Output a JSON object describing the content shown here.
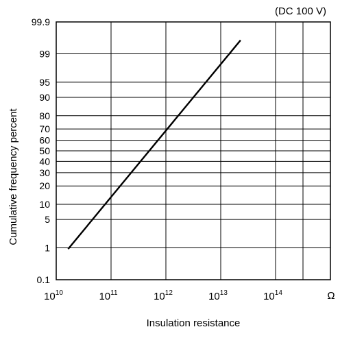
{
  "chart_data": {
    "type": "line",
    "annotation": "(DC 100 V)",
    "xlabel": "Insulation resistance",
    "ylabel": "Cumulative frequency percent",
    "x_unit_label": "Ω",
    "x_scale": "log",
    "y_scale": "normal-probability",
    "grid": true,
    "legend": "none",
    "xlim": [
      10000000000.0,
      1000000000000000.0
    ],
    "ylim": [
      0.1,
      99.9
    ],
    "x_ticks": [
      {
        "value": 10000000000.0,
        "base": "10",
        "exp": "10"
      },
      {
        "value": 100000000000.0,
        "base": "10",
        "exp": "11"
      },
      {
        "value": 1000000000000.0,
        "base": "10",
        "exp": "12"
      },
      {
        "value": 10000000000000.0,
        "base": "10",
        "exp": "13"
      },
      {
        "value": 100000000000000.0,
        "base": "10",
        "exp": "14"
      }
    ],
    "y_ticks": [
      {
        "value": 0.1,
        "label": "0.1"
      },
      {
        "value": 1,
        "label": "1"
      },
      {
        "value": 5,
        "label": "5"
      },
      {
        "value": 10,
        "label": "10"
      },
      {
        "value": 20,
        "label": "20"
      },
      {
        "value": 30,
        "label": "30"
      },
      {
        "value": 40,
        "label": "40"
      },
      {
        "value": 50,
        "label": "50"
      },
      {
        "value": 60,
        "label": "60"
      },
      {
        "value": 70,
        "label": "70"
      },
      {
        "value": 80,
        "label": "80"
      },
      {
        "value": 90,
        "label": "90"
      },
      {
        "value": 95,
        "label": "95"
      },
      {
        "value": 99,
        "label": "99"
      },
      {
        "value": 99.9,
        "label": "99.9"
      }
    ],
    "series": [
      {
        "points": [
          {
            "x": 16500000000.0,
            "y": 0.93
          },
          {
            "x": 23000000000000.0,
            "y": 99.6
          }
        ]
      }
    ]
  }
}
